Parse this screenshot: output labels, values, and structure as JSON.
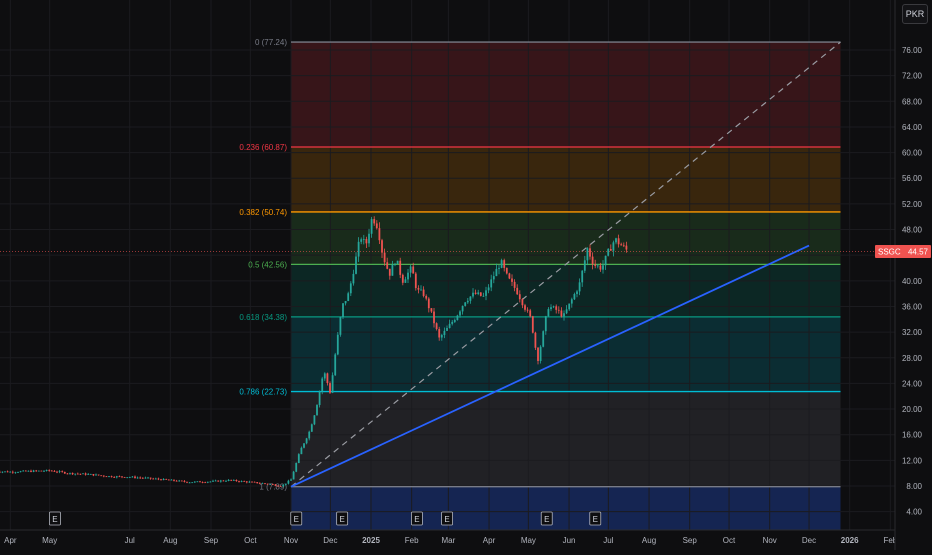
{
  "currency": "PKR",
  "ticker": "SSGC",
  "last_price": "44.57",
  "colors": {
    "up": "#26a69a",
    "down": "#ef5350",
    "trendline": "#2962ff",
    "level_0": "#787b86",
    "level_0236": "#f23645",
    "level_0382": "#ff9800",
    "level_05": "#4caf50",
    "level_0618": "#089981",
    "level_0786": "#00bcd4",
    "level_1": "#787b86"
  },
  "earnings_marker": "E",
  "chart_data": {
    "type": "candlestick",
    "x_axis": {
      "labels": [
        "Apr",
        "May",
        "Jul",
        "Aug",
        "Sep",
        "Oct",
        "Nov",
        "Dec",
        "2025",
        "Feb",
        "Mar",
        "Apr",
        "May",
        "Jun",
        "Jul",
        "Aug",
        "Sep",
        "Oct",
        "Nov",
        "Dec",
        "2026",
        "Feb"
      ],
      "dates": [
        "2024-04-01",
        "2024-05-01",
        "2024-07-01",
        "2024-08-01",
        "2024-09-01",
        "2024-10-01",
        "2024-11-01",
        "2024-12-01",
        "2025-01-01",
        "2025-02-01",
        "2025-03-01",
        "2025-04-01",
        "2025-05-01",
        "2025-06-01",
        "2025-07-01",
        "2025-08-01",
        "2025-09-01",
        "2025-10-01",
        "2025-11-01",
        "2025-12-01",
        "2026-01-01",
        "2026-02-01"
      ]
    },
    "y_axis": {
      "labels": [
        "76.00",
        "72.00",
        "68.00",
        "64.00",
        "60.00",
        "56.00",
        "52.00",
        "48.00",
        "44.00",
        "40.00",
        "36.00",
        "32.00",
        "28.00",
        "24.00",
        "20.00",
        "16.00",
        "12.00",
        "8.00",
        "4.00"
      ],
      "values": [
        76,
        72,
        68,
        64,
        60,
        56,
        52,
        48,
        44,
        40,
        36,
        32,
        28,
        24,
        20,
        16,
        12,
        8,
        4
      ],
      "range": [
        2,
        80
      ]
    },
    "fib_retracement": {
      "start_date": "2024-11-01",
      "end_date": "2025-12-25",
      "levels": [
        {
          "label": "0 (77.24)",
          "ratio": 0,
          "price": 77.24
        },
        {
          "label": "0.236 (60.87)",
          "ratio": 0.236,
          "price": 60.87
        },
        {
          "label": "0.382 (50.74)",
          "ratio": 0.382,
          "price": 50.74
        },
        {
          "label": "0.5 (42.56)",
          "ratio": 0.5,
          "price": 42.56
        },
        {
          "label": "0.618 (34.38)",
          "ratio": 0.618,
          "price": 34.38
        },
        {
          "label": "0.786 (22.73)",
          "ratio": 0.786,
          "price": 22.73
        },
        {
          "label": "1 (7.89)",
          "ratio": 1,
          "price": 7.89
        }
      ]
    },
    "trendline": {
      "from": {
        "date": "2024-11-01",
        "price": 7.89
      },
      "to": {
        "date": "2025-12-01",
        "price": 45.5
      }
    },
    "diagonal": {
      "from": {
        "date": "2024-11-01",
        "price": 7.89
      },
      "to": {
        "date": "2025-12-25",
        "price": 77.24
      }
    },
    "earnings_dates": [
      "2024-05-05",
      "2024-11-05",
      "2024-12-10",
      "2025-02-05",
      "2025-02-28",
      "2025-05-15",
      "2025-06-21"
    ],
    "price_series": [
      [
        "2024-03-20",
        10.3
      ],
      [
        "2024-04-01",
        10.2
      ],
      [
        "2024-04-15",
        10.3
      ],
      [
        "2024-05-01",
        10.4
      ],
      [
        "2024-05-15",
        10.0
      ],
      [
        "2024-06-01",
        9.8
      ],
      [
        "2024-06-15",
        9.5
      ],
      [
        "2024-07-01",
        9.4
      ],
      [
        "2024-07-15",
        9.2
      ],
      [
        "2024-08-01",
        8.9
      ],
      [
        "2024-08-15",
        8.6
      ],
      [
        "2024-09-01",
        8.7
      ],
      [
        "2024-09-15",
        8.9
      ],
      [
        "2024-10-01",
        8.6
      ],
      [
        "2024-10-15",
        8.3
      ],
      [
        "2024-10-25",
        8.0
      ],
      [
        "2024-11-01",
        9.0
      ],
      [
        "2024-11-08",
        13.5
      ],
      [
        "2024-11-15",
        16.5
      ],
      [
        "2024-11-20",
        20.0
      ],
      [
        "2024-11-26",
        26.0
      ],
      [
        "2024-12-01",
        22.5
      ],
      [
        "2024-12-05",
        29.0
      ],
      [
        "2024-12-10",
        36.0
      ],
      [
        "2024-12-15",
        38.0
      ],
      [
        "2024-12-20",
        43.0
      ],
      [
        "2024-12-24",
        47.0
      ],
      [
        "2024-12-28",
        45.5
      ],
      [
        "2025-01-02",
        50.0
      ],
      [
        "2025-01-06",
        48.5
      ],
      [
        "2025-01-10",
        44.0
      ],
      [
        "2025-01-15",
        41.0
      ],
      [
        "2025-01-20",
        43.5
      ],
      [
        "2025-01-25",
        40.0
      ],
      [
        "2025-02-01",
        42.0
      ],
      [
        "2025-02-05",
        38.5
      ],
      [
        "2025-02-10",
        38.0
      ],
      [
        "2025-02-15",
        35.5
      ],
      [
        "2025-02-22",
        31.0
      ],
      [
        "2025-02-28",
        32.5
      ],
      [
        "2025-03-07",
        34.5
      ],
      [
        "2025-03-14",
        37.0
      ],
      [
        "2025-03-21",
        38.0
      ],
      [
        "2025-03-28",
        37.5
      ],
      [
        "2025-04-05",
        41.0
      ],
      [
        "2025-04-10",
        43.0
      ],
      [
        "2025-04-15",
        40.5
      ],
      [
        "2025-04-22",
        38.5
      ],
      [
        "2025-04-28",
        36.0
      ],
      [
        "2025-05-03",
        34.0
      ],
      [
        "2025-05-08",
        27.5
      ],
      [
        "2025-05-12",
        31.5
      ],
      [
        "2025-05-16",
        36.0
      ],
      [
        "2025-05-22",
        35.5
      ],
      [
        "2025-05-28",
        34.5
      ],
      [
        "2025-06-03",
        37.0
      ],
      [
        "2025-06-09",
        39.5
      ],
      [
        "2025-06-15",
        45.0
      ],
      [
        "2025-06-20",
        42.5
      ],
      [
        "2025-06-26",
        42.0
      ],
      [
        "2025-07-01",
        44.5
      ],
      [
        "2025-07-06",
        46.5
      ],
      [
        "2025-07-11",
        45.5
      ],
      [
        "2025-07-16",
        44.6
      ]
    ]
  }
}
